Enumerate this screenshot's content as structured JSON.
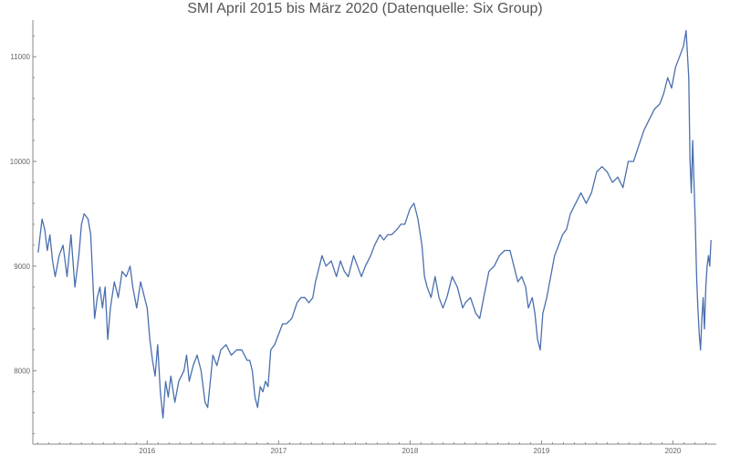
{
  "chart_data": {
    "type": "line",
    "title": "SMI April 2015 bis März 2020 (Datenquelle: Six Group)",
    "xlabel": "",
    "ylabel": "",
    "xlim": [
      2015.13,
      2020.33
    ],
    "ylim": [
      7300,
      11350
    ],
    "grid": false,
    "legend": "none",
    "color": "#4a6fae",
    "x_ticks": [
      {
        "value": 2016,
        "label": "2016"
      },
      {
        "value": 2017,
        "label": "2017"
      },
      {
        "value": 2018,
        "label": "2018"
      },
      {
        "value": 2019,
        "label": "2019"
      },
      {
        "value": 2020,
        "label": "2020"
      }
    ],
    "y_ticks": [
      {
        "value": 8000,
        "label": "8000"
      },
      {
        "value": 9000,
        "label": "9000"
      },
      {
        "value": 10000,
        "label": "10000"
      },
      {
        "value": 11000,
        "label": "11000"
      }
    ],
    "series": [
      {
        "points": [
          [
            2015.17,
            9130
          ],
          [
            2015.2,
            9450
          ],
          [
            2015.22,
            9350
          ],
          [
            2015.24,
            9150
          ],
          [
            2015.26,
            9300
          ],
          [
            2015.28,
            9050
          ],
          [
            2015.3,
            8900
          ],
          [
            2015.33,
            9100
          ],
          [
            2015.36,
            9200
          ],
          [
            2015.39,
            8900
          ],
          [
            2015.42,
            9300
          ],
          [
            2015.45,
            8800
          ],
          [
            2015.48,
            9100
          ],
          [
            2015.5,
            9400
          ],
          [
            2015.52,
            9500
          ],
          [
            2015.55,
            9450
          ],
          [
            2015.57,
            9300
          ],
          [
            2015.6,
            8500
          ],
          [
            2015.62,
            8700
          ],
          [
            2015.64,
            8800
          ],
          [
            2015.66,
            8600
          ],
          [
            2015.68,
            8800
          ],
          [
            2015.7,
            8300
          ],
          [
            2015.72,
            8600
          ],
          [
            2015.75,
            8850
          ],
          [
            2015.78,
            8700
          ],
          [
            2015.81,
            8950
          ],
          [
            2015.84,
            8900
          ],
          [
            2015.87,
            9000
          ],
          [
            2015.89,
            8800
          ],
          [
            2015.92,
            8600
          ],
          [
            2015.95,
            8850
          ],
          [
            2015.98,
            8700
          ],
          [
            2016.0,
            8600
          ],
          [
            2016.02,
            8300
          ],
          [
            2016.04,
            8100
          ],
          [
            2016.06,
            7950
          ],
          [
            2016.08,
            8250
          ],
          [
            2016.1,
            7800
          ],
          [
            2016.12,
            7550
          ],
          [
            2016.14,
            7900
          ],
          [
            2016.16,
            7750
          ],
          [
            2016.18,
            7950
          ],
          [
            2016.21,
            7700
          ],
          [
            2016.24,
            7900
          ],
          [
            2016.28,
            8000
          ],
          [
            2016.3,
            8150
          ],
          [
            2016.32,
            7900
          ],
          [
            2016.35,
            8050
          ],
          [
            2016.38,
            8150
          ],
          [
            2016.41,
            8000
          ],
          [
            2016.44,
            7700
          ],
          [
            2016.46,
            7650
          ],
          [
            2016.48,
            7900
          ],
          [
            2016.5,
            8150
          ],
          [
            2016.53,
            8050
          ],
          [
            2016.56,
            8200
          ],
          [
            2016.6,
            8250
          ],
          [
            2016.64,
            8150
          ],
          [
            2016.68,
            8200
          ],
          [
            2016.72,
            8200
          ],
          [
            2016.76,
            8100
          ],
          [
            2016.78,
            8100
          ],
          [
            2016.8,
            8000
          ],
          [
            2016.82,
            7750
          ],
          [
            2016.84,
            7650
          ],
          [
            2016.86,
            7850
          ],
          [
            2016.88,
            7800
          ],
          [
            2016.9,
            7900
          ],
          [
            2016.92,
            7850
          ],
          [
            2016.94,
            8200
          ],
          [
            2016.97,
            8250
          ],
          [
            2017.0,
            8350
          ],
          [
            2017.03,
            8450
          ],
          [
            2017.06,
            8450
          ],
          [
            2017.1,
            8500
          ],
          [
            2017.14,
            8650
          ],
          [
            2017.17,
            8700
          ],
          [
            2017.2,
            8700
          ],
          [
            2017.23,
            8650
          ],
          [
            2017.26,
            8700
          ],
          [
            2017.28,
            8850
          ],
          [
            2017.3,
            8950
          ],
          [
            2017.33,
            9100
          ],
          [
            2017.36,
            9000
          ],
          [
            2017.4,
            9050
          ],
          [
            2017.44,
            8900
          ],
          [
            2017.47,
            9050
          ],
          [
            2017.5,
            8950
          ],
          [
            2017.53,
            8900
          ],
          [
            2017.57,
            9100
          ],
          [
            2017.6,
            9000
          ],
          [
            2017.63,
            8900
          ],
          [
            2017.66,
            9000
          ],
          [
            2017.7,
            9100
          ],
          [
            2017.73,
            9200
          ],
          [
            2017.77,
            9300
          ],
          [
            2017.8,
            9250
          ],
          [
            2017.83,
            9300
          ],
          [
            2017.86,
            9300
          ],
          [
            2017.9,
            9350
          ],
          [
            2017.93,
            9400
          ],
          [
            2017.96,
            9400
          ],
          [
            2018.0,
            9550
          ],
          [
            2018.03,
            9600
          ],
          [
            2018.06,
            9450
          ],
          [
            2018.09,
            9200
          ],
          [
            2018.11,
            8900
          ],
          [
            2018.13,
            8800
          ],
          [
            2018.16,
            8700
          ],
          [
            2018.19,
            8900
          ],
          [
            2018.22,
            8700
          ],
          [
            2018.25,
            8600
          ],
          [
            2018.28,
            8700
          ],
          [
            2018.32,
            8900
          ],
          [
            2018.36,
            8800
          ],
          [
            2018.4,
            8600
          ],
          [
            2018.42,
            8650
          ],
          [
            2018.46,
            8700
          ],
          [
            2018.5,
            8550
          ],
          [
            2018.53,
            8500
          ],
          [
            2018.56,
            8700
          ],
          [
            2018.6,
            8950
          ],
          [
            2018.64,
            9000
          ],
          [
            2018.68,
            9100
          ],
          [
            2018.72,
            9150
          ],
          [
            2018.76,
            9150
          ],
          [
            2018.79,
            9000
          ],
          [
            2018.82,
            8850
          ],
          [
            2018.85,
            8900
          ],
          [
            2018.88,
            8800
          ],
          [
            2018.9,
            8600
          ],
          [
            2018.93,
            8700
          ],
          [
            2018.95,
            8550
          ],
          [
            2018.97,
            8300
          ],
          [
            2018.99,
            8200
          ],
          [
            2019.01,
            8550
          ],
          [
            2019.04,
            8700
          ],
          [
            2019.07,
            8900
          ],
          [
            2019.1,
            9100
          ],
          [
            2019.13,
            9200
          ],
          [
            2019.16,
            9300
          ],
          [
            2019.19,
            9350
          ],
          [
            2019.22,
            9500
          ],
          [
            2019.26,
            9600
          ],
          [
            2019.3,
            9700
          ],
          [
            2019.34,
            9600
          ],
          [
            2019.38,
            9700
          ],
          [
            2019.42,
            9900
          ],
          [
            2019.46,
            9950
          ],
          [
            2019.5,
            9900
          ],
          [
            2019.54,
            9800
          ],
          [
            2019.58,
            9850
          ],
          [
            2019.62,
            9750
          ],
          [
            2019.66,
            10000
          ],
          [
            2019.7,
            10000
          ],
          [
            2019.74,
            10150
          ],
          [
            2019.78,
            10300
          ],
          [
            2019.82,
            10400
          ],
          [
            2019.86,
            10500
          ],
          [
            2019.9,
            10550
          ],
          [
            2019.93,
            10650
          ],
          [
            2019.96,
            10800
          ],
          [
            2019.99,
            10700
          ],
          [
            2020.02,
            10900
          ],
          [
            2020.05,
            11000
          ],
          [
            2020.08,
            11100
          ],
          [
            2020.1,
            11250
          ],
          [
            2020.12,
            10800
          ],
          [
            2020.13,
            10000
          ],
          [
            2020.14,
            9700
          ],
          [
            2020.15,
            10200
          ],
          [
            2020.17,
            9400
          ],
          [
            2020.18,
            8900
          ],
          [
            2020.19,
            8600
          ],
          [
            2020.2,
            8350
          ],
          [
            2020.21,
            8200
          ],
          [
            2020.22,
            8500
          ],
          [
            2020.23,
            8700
          ],
          [
            2020.24,
            8400
          ],
          [
            2020.25,
            8800
          ],
          [
            2020.26,
            9000
          ],
          [
            2020.27,
            9100
          ],
          [
            2020.28,
            9000
          ],
          [
            2020.29,
            9250
          ]
        ]
      }
    ]
  }
}
